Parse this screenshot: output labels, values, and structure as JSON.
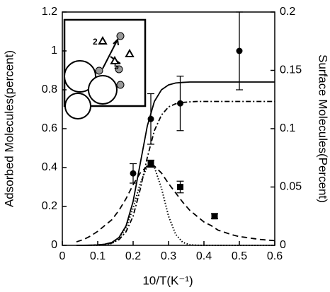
{
  "chart_data": {
    "type": "line",
    "xlabel": "10/T(K⁻¹)",
    "ylabel": "Adsorbed Molecules(percent)",
    "y2label": "Surface Molecules(Percent)",
    "xlim": [
      0,
      0.6
    ],
    "xticks": [
      0,
      0.1,
      0.2,
      0.3,
      0.4,
      0.5,
      0.6
    ],
    "ylim": [
      0,
      1.2
    ],
    "yticks": [
      0,
      0.2,
      0.4,
      0.6,
      0.8,
      1,
      1.2
    ],
    "y2lim": [
      0,
      0.2
    ],
    "y2ticks": [
      0,
      0.05,
      0.1,
      0.15,
      0.2
    ],
    "inset_labels": [
      "2",
      "5"
    ],
    "x": [
      0.04,
      0.06,
      0.08,
      0.1,
      0.12,
      0.14,
      0.16,
      0.18,
      0.2,
      0.22,
      0.24,
      0.26,
      0.28,
      0.3,
      0.32,
      0.34,
      0.36,
      0.38,
      0.4,
      0.42,
      0.44,
      0.46,
      0.48,
      0.5,
      0.52,
      0.54,
      0.56,
      0.58,
      0.6
    ],
    "series": [
      {
        "color": "#000000",
        "style": "solid",
        "values": [
          0,
          0.0003,
          0.001,
          0.002,
          0.006,
          0.015,
          0.04,
          0.1,
          0.226,
          0.42,
          0.614,
          0.74,
          0.8,
          0.825,
          0.835,
          0.838,
          0.84,
          0.84,
          0.84,
          0.84,
          0.84,
          0.84,
          0.84,
          0.84,
          0.84,
          0.84,
          0.84,
          0.84,
          0.84
        ]
      },
      {
        "color": "#000000",
        "style": "dashdot",
        "values": [
          0.0001,
          0.0003,
          0.0008,
          0.002,
          0.005,
          0.012,
          0.029,
          0.07,
          0.15,
          0.288,
          0.452,
          0.59,
          0.67,
          0.712,
          0.728,
          0.735,
          0.738,
          0.74,
          0.74,
          0.74,
          0.74,
          0.74,
          0.74,
          0.74,
          0.74,
          0.74,
          0.74,
          0.74,
          0.74
        ]
      },
      {
        "color": "#000000",
        "style": "dashed",
        "axis": "y2",
        "values": [
          0.003,
          0.005,
          0.008,
          0.012,
          0.017,
          0.022,
          0.03,
          0.04,
          0.052,
          0.062,
          0.068,
          0.068,
          0.062,
          0.053,
          0.045,
          0.037,
          0.03,
          0.025,
          0.02,
          0.017,
          0.013,
          0.011,
          0.009,
          0.0075,
          0.0067,
          0.0058,
          0.005,
          0.0045,
          0.004
        ]
      },
      {
        "color": "#000000",
        "style": "dotted",
        "axis": "y2",
        "values": [
          0,
          0,
          0,
          0.0001,
          0.0004,
          0.0016,
          0.0056,
          0.0151,
          0.032,
          0.053,
          0.068,
          0.067,
          0.049,
          0.025,
          0.0095,
          0.0026,
          0.0005,
          0.0001,
          0,
          0,
          0,
          0,
          0,
          0,
          0,
          0,
          0,
          0,
          0
        ]
      }
    ],
    "points": [
      {
        "marker": "circle",
        "color": "#000000",
        "x": [
          0.2,
          0.25,
          0.333,
          0.5
        ],
        "values": [
          0.37,
          0.65,
          0.73,
          1.0
        ],
        "errors": [
          0.05,
          0.13,
          0.14,
          0.2
        ]
      },
      {
        "marker": "square",
        "color": "#000000",
        "axis": "y2",
        "x": [
          0.25,
          0.333,
          0.43
        ],
        "values": [
          0.07,
          0.05,
          0.025
        ],
        "errors": [
          0.003,
          0.005,
          0.002
        ]
      }
    ]
  }
}
